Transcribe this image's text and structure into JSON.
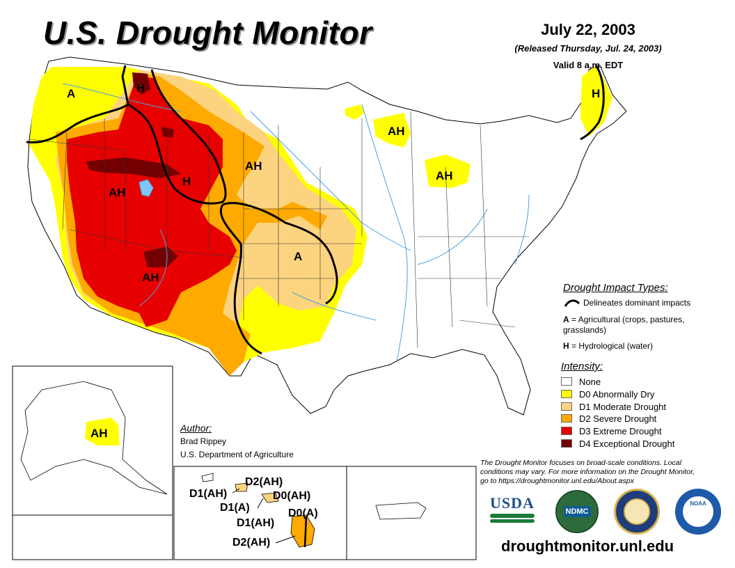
{
  "header": {
    "title": "U.S. Drought Monitor",
    "date": "July 22, 2003",
    "released": "(Released Thursday, Jul. 24, 2003)",
    "valid": "Valid 8 a.m. EDT"
  },
  "map": {
    "labels": [
      "A",
      "H",
      "AH",
      "AH",
      "H",
      "AH",
      "AH",
      "A",
      "AH",
      "H",
      "AH"
    ],
    "hawaii_labels": [
      "D2(AH)",
      "D1(AH)",
      "D0(AH)",
      "D1(A)",
      "D0(A)",
      "D1(AH)",
      "D2(AH)"
    ]
  },
  "impact_types": {
    "title": "Drought Impact Types:",
    "delineates": "Delineates dominant impacts",
    "agricultural_key": "A",
    "agricultural": " = Agricultural (crops, pastures, grasslands)",
    "hydrological_key": "H",
    "hydrological": " = Hydrological (water)"
  },
  "intensity": {
    "title": "Intensity:",
    "levels": [
      {
        "label": "None",
        "color": "#ffffff"
      },
      {
        "label": "D0 Abnormally Dry",
        "color": "#ffff00"
      },
      {
        "label": "D1 Moderate Drought",
        "color": "#fcd37f"
      },
      {
        "label": "D2 Severe Drought",
        "color": "#ffaa00"
      },
      {
        "label": "D3 Extreme Drought",
        "color": "#e60000"
      },
      {
        "label": "D4 Exceptional Drought",
        "color": "#730000"
      }
    ]
  },
  "author": {
    "title": "Author:",
    "name": "Brad Rippey",
    "org": "U.S. Department of Agriculture"
  },
  "note": "The Drought Monitor focuses on broad-scale conditions. Local conditions may vary. For more information on the Drought Monitor, go to https://droughtmonitor.unl.edu/About.aspx",
  "logos": {
    "usda": "USDA",
    "ndmc": "NDMC",
    "noaa": "NOAA"
  },
  "url": "droughtmonitor.unl.edu",
  "colors": {
    "d0": "#ffff00",
    "d1": "#fcd37f",
    "d2": "#ffaa00",
    "d3": "#e60000",
    "d4": "#730000",
    "water": "#4aa3df"
  }
}
